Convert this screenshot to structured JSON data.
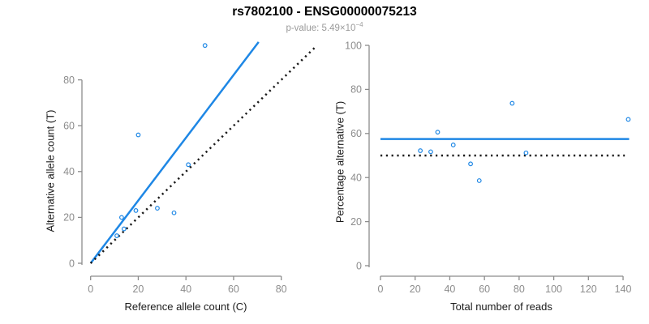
{
  "header": {
    "title": "rs7802100 - ENSG00000075213",
    "subtitle_prefix": "p-value: 5.49×10",
    "subtitle_exponent": "−4"
  },
  "colors": {
    "accent_blue": "#1E87E5",
    "dotted_black": "#1a1a1a",
    "axis_gray": "#8c8c8c",
    "subtitle_gray": "#9a9a9a"
  },
  "chart_data": [
    {
      "type": "scatter",
      "title": "",
      "xlabel": "Reference allele count (C)",
      "ylabel": "Alternative allele count (T)",
      "xlim": [
        0,
        95
      ],
      "ylim": [
        0,
        97
      ],
      "grid": false,
      "legend": "none",
      "x_ticks": [
        0,
        20,
        40,
        60,
        80
      ],
      "y_ticks": [
        0,
        20,
        40,
        60,
        80
      ],
      "point_color": "#1E87E5",
      "points": [
        [
          11,
          12
        ],
        [
          13,
          20
        ],
        [
          14,
          15
        ],
        [
          19,
          23
        ],
        [
          20,
          56
        ],
        [
          28,
          24
        ],
        [
          35,
          22
        ],
        [
          41,
          43
        ],
        [
          48,
          95
        ]
      ],
      "lines": [
        {
          "name": "fit-line",
          "style": "solid",
          "color": "#1E87E5",
          "x1": 0,
          "y1": 0,
          "x2": 70.5,
          "y2": 96.5
        },
        {
          "name": "identity-line",
          "style": "dotted",
          "color": "#1a1a1a",
          "x1": 0,
          "y1": 0,
          "x2": 94,
          "y2": 94
        }
      ]
    },
    {
      "type": "scatter",
      "title": "",
      "xlabel": "Total number of reads",
      "ylabel": "Percentage alternative (T)",
      "xlim": [
        0,
        144
      ],
      "ylim": [
        0,
        104
      ],
      "grid": false,
      "legend": "none",
      "x_ticks": [
        0,
        20,
        40,
        60,
        80,
        100,
        120,
        140
      ],
      "y_ticks": [
        0,
        20,
        40,
        60,
        80,
        100
      ],
      "point_color": "#1E87E5",
      "points": [
        [
          23,
          52.2
        ],
        [
          29,
          51.7
        ],
        [
          33,
          60.6
        ],
        [
          42,
          54.8
        ],
        [
          52,
          46.2
        ],
        [
          57,
          38.6
        ],
        [
          76,
          73.7
        ],
        [
          84,
          51.2
        ],
        [
          143,
          66.4
        ]
      ],
      "lines": [
        {
          "name": "overall-percentage-line",
          "style": "solid",
          "color": "#1E87E5",
          "x1": 0,
          "y1": 57.5,
          "x2": 143.5,
          "y2": 57.5
        },
        {
          "name": "null-50-percent-line",
          "style": "dotted",
          "color": "#1a1a1a",
          "x1": 0,
          "y1": 50,
          "x2": 141,
          "y2": 50
        }
      ]
    }
  ]
}
